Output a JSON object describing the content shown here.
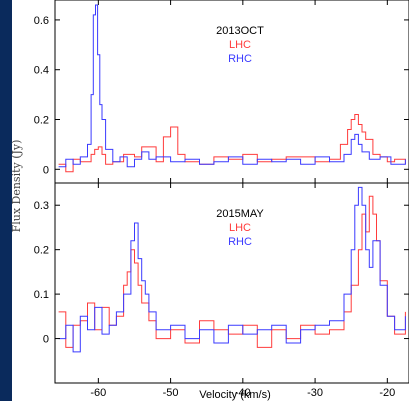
{
  "colors": {
    "frame": "#0a2a5c",
    "background": "#ffffff",
    "axis": "#000000",
    "lhc": "#ff3b3b",
    "rhc": "#3a3aff"
  },
  "chart_data": [
    {
      "type": "line",
      "title": "2013OCT",
      "xlabel": "",
      "ylabel": "Flux Density (Jy)",
      "xlim": [
        -66,
        -17
      ],
      "ylim": [
        -0.055,
        0.68
      ],
      "yticks": [
        0,
        0.2,
        0.4,
        0.6
      ],
      "ytick_labels": [
        "0",
        "0.2",
        "0.4",
        "0.6"
      ],
      "xticks": [
        -60,
        -50,
        -40,
        -30,
        -20
      ],
      "legend": [
        "LHC",
        "RHC"
      ],
      "legend_position": "top-center",
      "series": [
        {
          "name": "LHC",
          "color": "#ff3b3b",
          "x": [
            -65.5,
            -64.5,
            -63.5,
            -62.5,
            -61.5,
            -61.0,
            -60.5,
            -60.0,
            -59.5,
            -59.0,
            -58.0,
            -56.5,
            -55.0,
            -54.0,
            -52.0,
            -51.0,
            -50.0,
            -49.0,
            -48.0,
            -46.0,
            -44.0,
            -42.0,
            -40.0,
            -38.0,
            -36.0,
            -34.0,
            -32.0,
            -30.0,
            -28.0,
            -26.5,
            -25.5,
            -25.0,
            -24.5,
            -24.0,
            -23.5,
            -23.0,
            -22.0,
            -21.0,
            -20.0,
            -19.0,
            -17.5
          ],
          "y": [
            0.02,
            -0.01,
            0.04,
            0.03,
            0.03,
            0.06,
            0.08,
            0.09,
            0.06,
            0.02,
            0.03,
            0.06,
            0.05,
            0.09,
            0.03,
            0.13,
            0.17,
            0.06,
            0.03,
            0.02,
            0.05,
            0.04,
            0.06,
            0.03,
            0.04,
            0.05,
            0.05,
            0.03,
            0.04,
            0.1,
            0.16,
            0.2,
            0.22,
            0.18,
            0.15,
            0.12,
            0.06,
            0.05,
            0.03,
            0.04,
            0.02
          ]
        },
        {
          "name": "RHC",
          "color": "#3a3aff",
          "x": [
            -65.5,
            -64.5,
            -63.5,
            -62.5,
            -61.5,
            -61.0,
            -60.7,
            -60.4,
            -60.1,
            -59.8,
            -59.5,
            -59.0,
            -58.0,
            -57.0,
            -56.0,
            -55.0,
            -54.0,
            -53.0,
            -52.0,
            -50.0,
            -48.0,
            -46.0,
            -44.0,
            -42.0,
            -40.0,
            -38.0,
            -36.0,
            -34.0,
            -32.0,
            -30.0,
            -28.0,
            -26.0,
            -25.0,
            -24.5,
            -24.0,
            -23.5,
            -22.5,
            -21.0,
            -19.5,
            -17.5
          ],
          "y": [
            0.01,
            0.04,
            0.02,
            0.05,
            0.1,
            0.3,
            0.62,
            0.66,
            0.46,
            0.26,
            0.2,
            0.08,
            0.03,
            0.05,
            0.01,
            0.04,
            0.07,
            0.04,
            0.05,
            0.03,
            0.04,
            0.02,
            0.03,
            0.05,
            0.02,
            0.04,
            0.03,
            0.04,
            0.02,
            0.05,
            0.03,
            0.06,
            0.12,
            0.14,
            0.1,
            0.07,
            0.04,
            0.05,
            0.02,
            0.04
          ]
        }
      ]
    },
    {
      "type": "line",
      "title": "2015MAY",
      "xlabel": "Velocity (km/s)",
      "ylabel": "Flux Density (Jy)",
      "xlim": [
        -66,
        -17
      ],
      "ylim": [
        -0.1,
        0.35
      ],
      "yticks": [
        0,
        0.1,
        0.2,
        0.3
      ],
      "ytick_labels": [
        "0",
        "0.1",
        "0.2",
        "0.3"
      ],
      "xticks": [
        -60,
        -50,
        -40,
        -30,
        -20
      ],
      "xtick_labels": [
        "-60",
        "-50",
        "-40",
        "-30",
        "-20"
      ],
      "legend": [
        "LHC",
        "RHC"
      ],
      "legend_position": "top-center",
      "series": [
        {
          "name": "LHC",
          "color": "#ff3b3b",
          "x": [
            -65.5,
            -64.5,
            -63.5,
            -62.5,
            -61.5,
            -60.5,
            -59.5,
            -58.5,
            -57.5,
            -56.5,
            -56.0,
            -55.5,
            -55.0,
            -54.5,
            -54.0,
            -53.0,
            -52.0,
            -50.0,
            -48.0,
            -46.0,
            -44.0,
            -42.0,
            -40.0,
            -38.0,
            -36.0,
            -34.0,
            -32.0,
            -30.0,
            -28.0,
            -26.0,
            -25.0,
            -24.0,
            -23.5,
            -23.0,
            -22.5,
            -22.0,
            -21.5,
            -21.0,
            -20.0,
            -19.0,
            -17.5
          ],
          "y": [
            0.06,
            -0.02,
            0.03,
            0.04,
            0.08,
            0.02,
            0.07,
            0.03,
            0.05,
            0.12,
            0.15,
            0.2,
            0.17,
            0.12,
            0.08,
            0.04,
            0.0,
            0.02,
            -0.01,
            0.04,
            0.02,
            0.01,
            0.03,
            -0.02,
            0.02,
            0.0,
            0.03,
            0.01,
            0.02,
            0.06,
            0.12,
            0.2,
            0.28,
            0.24,
            0.32,
            0.28,
            0.22,
            0.13,
            0.05,
            0.01,
            0.06
          ]
        },
        {
          "name": "RHC",
          "color": "#3a3aff",
          "x": [
            -65.5,
            -64.5,
            -63.5,
            -62.5,
            -61.5,
            -60.5,
            -59.5,
            -58.5,
            -57.5,
            -56.5,
            -55.5,
            -55.0,
            -54.5,
            -54.0,
            -53.5,
            -53.0,
            -52.0,
            -50.0,
            -48.0,
            -46.0,
            -44.0,
            -42.0,
            -40.0,
            -38.0,
            -36.0,
            -34.0,
            -32.0,
            -30.0,
            -28.0,
            -26.0,
            -25.0,
            -24.5,
            -24.0,
            -23.5,
            -23.0,
            -22.5,
            -22.0,
            -21.0,
            -20.0,
            -19.0,
            -17.5
          ],
          "y": [
            0.0,
            0.03,
            -0.03,
            0.05,
            0.02,
            0.07,
            0.01,
            0.03,
            0.06,
            0.1,
            0.22,
            0.26,
            0.18,
            0.13,
            0.1,
            0.06,
            0.02,
            0.03,
            0.0,
            0.02,
            -0.01,
            0.03,
            0.01,
            0.02,
            0.03,
            -0.01,
            0.02,
            0.03,
            0.04,
            0.1,
            0.2,
            0.3,
            0.34,
            0.3,
            0.2,
            0.16,
            0.22,
            0.12,
            0.05,
            0.02,
            0.05
          ]
        }
      ]
    }
  ]
}
